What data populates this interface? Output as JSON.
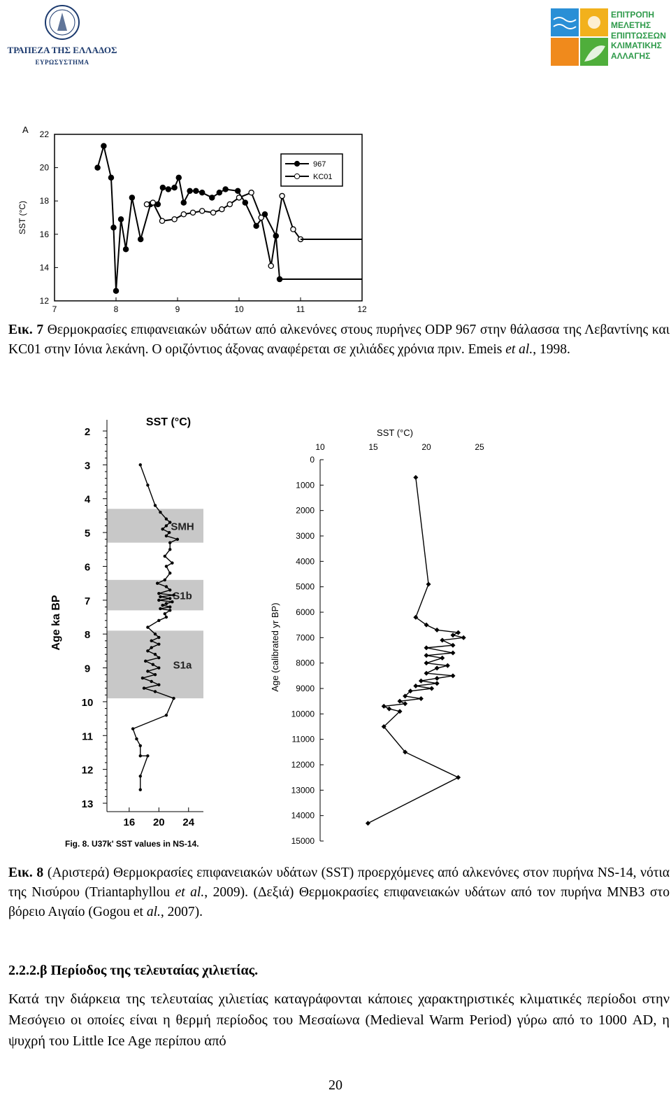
{
  "header": {
    "left_logo_text": "ΤΡΑΠΕΖΑ ΤΗΣ ΕΛΛΑΔΟΣ",
    "left_logo_sub": "ΕΥΡΩΣΥΣΤΗΜΑ",
    "right_logo_lines": [
      "ΕΠΙΤΡΟΠΗ",
      "ΜΕΛΕΤΗΣ",
      "ΕΠΙΠΤΩΣΕΩΝ",
      "ΚΛΙΜΑΤΙΚΗΣ",
      "ΑΛΛΑΓΗΣ"
    ]
  },
  "chart_data": [
    {
      "type": "line",
      "panel_label": "A",
      "ylabel": "SST (°C)",
      "xlim": [
        7,
        12
      ],
      "ylim": [
        12,
        22
      ],
      "xticks": [
        "7",
        "8",
        "9",
        "10",
        "11",
        "12"
      ],
      "yticks": [
        "12",
        "14",
        "16",
        "18",
        "20",
        "22"
      ],
      "series": [
        {
          "name": "967",
          "marker": "filled-circle",
          "x": [
            7.7,
            7.8,
            7.92,
            7.96,
            8.0,
            8.08,
            8.16,
            8.26,
            8.4,
            8.56,
            8.68,
            8.76,
            8.85,
            8.95,
            9.02,
            9.1,
            9.2,
            9.3,
            9.4,
            9.56,
            9.68,
            9.78,
            9.98,
            10.1,
            10.28,
            10.42,
            10.6,
            10.66
          ],
          "y": [
            20.0,
            21.3,
            19.4,
            16.4,
            12.6,
            16.9,
            15.1,
            18.2,
            15.7,
            17.8,
            17.8,
            18.8,
            18.7,
            18.8,
            19.4,
            17.9,
            18.6,
            18.6,
            18.5,
            18.2,
            18.5,
            18.7,
            18.6,
            17.9,
            16.5,
            17.2,
            15.9,
            13.3
          ]
        },
        {
          "name": "KC01",
          "marker": "open-circle",
          "x": [
            8.5,
            8.6,
            8.75,
            8.95,
            9.1,
            9.25,
            9.4,
            9.58,
            9.72,
            9.85,
            10.0,
            10.2,
            10.36,
            10.52,
            10.7,
            10.88,
            11.0
          ],
          "y": [
            17.8,
            17.9,
            16.8,
            16.9,
            17.2,
            17.3,
            17.4,
            17.3,
            17.5,
            17.8,
            18.2,
            18.5,
            17.0,
            14.1,
            18.3,
            16.3,
            15.7
          ]
        }
      ]
    },
    {
      "type": "line",
      "xlabel": "SST (°C)",
      "ylabel": "Age ka BP",
      "xticks": [
        "16",
        "20",
        "24"
      ],
      "yticks": [
        "2",
        "3",
        "4",
        "5",
        "6",
        "7",
        "8",
        "9",
        "10",
        "11",
        "12",
        "13"
      ],
      "xlim": [
        13,
        26
      ],
      "ylim": [
        2,
        13
      ],
      "bands": [
        {
          "label": "SMH",
          "from": 4.3,
          "to": 5.3
        },
        {
          "label": "S1b",
          "from": 6.4,
          "to": 7.3
        },
        {
          "label": "S1a",
          "from": 7.9,
          "to": 9.9
        }
      ],
      "caption": "Fig. 8. U37k' SST values in NS-14.",
      "series": [
        {
          "x": [
            17.5,
            18.5,
            19.5,
            20.2,
            21.0,
            21.5,
            21.0,
            20.5,
            21.4,
            21.0,
            22.5,
            21.5,
            21.5,
            20.8,
            21.8,
            21.0,
            21.5,
            20.8,
            19.8,
            21.0,
            21.5,
            20.0,
            22.0,
            20.2,
            21.5,
            20.0,
            21.8,
            21.0,
            20.5,
            21.5,
            20.2,
            21.5,
            20.8,
            21.0,
            20.0,
            18.5,
            19.5,
            20.0,
            19.0,
            20.0,
            19.0,
            18.5,
            19.5,
            20.0,
            18.2,
            19.2,
            20.0,
            18.5,
            19.5,
            17.8,
            19.0,
            20.0,
            18.0,
            19.5,
            22.0,
            21.0,
            16.5,
            17.0,
            17.5,
            17.5,
            18.5,
            17.5,
            17.5
          ],
          "y": [
            3.0,
            3.6,
            4.2,
            4.4,
            4.6,
            4.7,
            4.8,
            4.9,
            5.0,
            5.1,
            5.2,
            5.3,
            5.5,
            5.7,
            5.9,
            6.0,
            6.2,
            6.4,
            6.5,
            6.6,
            6.7,
            6.8,
            6.85,
            6.9,
            6.95,
            7.0,
            7.05,
            7.1,
            7.15,
            7.2,
            7.25,
            7.3,
            7.4,
            7.5,
            7.6,
            7.8,
            8.0,
            8.1,
            8.2,
            8.3,
            8.4,
            8.5,
            8.6,
            8.7,
            8.8,
            8.9,
            9.0,
            9.1,
            9.2,
            9.3,
            9.4,
            9.5,
            9.6,
            9.7,
            9.9,
            10.4,
            10.8,
            11.1,
            11.3,
            11.6,
            11.6,
            12.2,
            12.6
          ]
        }
      ]
    },
    {
      "type": "line",
      "xlabel": "SST (°C)",
      "ylabel": "Age (calibrated yr BP)",
      "xticks": [
        "10",
        "15",
        "20",
        "25"
      ],
      "yticks": [
        "0",
        "1000",
        "2000",
        "3000",
        "4000",
        "5000",
        "6000",
        "7000",
        "8000",
        "9000",
        "10000",
        "11000",
        "12000",
        "13000",
        "14000",
        "15000"
      ],
      "xlim": [
        10,
        25
      ],
      "ylim": [
        0,
        15000
      ],
      "series": [
        {
          "x": [
            19.0,
            20.2,
            19.0,
            20.0,
            21.0,
            23.0,
            22.5,
            23.5,
            21.5,
            22.5,
            20.0,
            22.5,
            20.0,
            21.5,
            20.0,
            22.0,
            21.0,
            20.0,
            22.5,
            21.0,
            19.5,
            21.0,
            19.0,
            20.5,
            18.5,
            18.0,
            19.5,
            17.5,
            18.0,
            16.0,
            16.5,
            17.5,
            16.0,
            18.0,
            23.0,
            14.5
          ],
          "y": [
            700,
            4900,
            6200,
            6500,
            6700,
            6800,
            6900,
            7000,
            7100,
            7300,
            7400,
            7600,
            7700,
            7800,
            8000,
            8100,
            8200,
            8400,
            8500,
            8600,
            8700,
            8800,
            8900,
            9000,
            9100,
            9300,
            9400,
            9500,
            9600,
            9700,
            9800,
            9900,
            10500,
            11500,
            12500,
            14300
          ]
        }
      ]
    }
  ],
  "captions": {
    "fig7_label": "Εικ.",
    "fig7_num": "7",
    "fig7_a": "Θερμοκρασίες επιφανειακών υδάτων από αλκενόνες στους πυρήνες ODP 967 στην θάλασσα της Λεβαντίνης και KC01 στην Ιόνια λεκάνη. Ο οριζόντιος άξονας αναφέρεται σε χιλιάδες χρόνια πριν. Emeis ",
    "fig7_etal": "et al.",
    "fig7_b": ", 1998.",
    "fig8_label": "Εικ.",
    "fig8_num": "8",
    "fig8_a": "(Αριστερά) Θερμοκρασίες επιφανειακών υδάτων (SST) προερχόμενες από αλκενόνες στον πυρήνα NS-14, νότια της Νισύρου (Triantaphyllou ",
    "fig8_etal1": "et al.",
    "fig8_b": ", 2009). (Δεξιά) Θερμοκρασίες επιφανειακών υδάτων από τον πυρήνα MNB3 στο βόρειο Αιγαίο (Gogou et ",
    "fig8_etal2": "al.",
    "fig8_c": ", 2007)."
  },
  "section": {
    "heading": "2.2.2.β Περίοδος της τελευταίας χιλιετίας.",
    "body": "Κατά την διάρκεια της τελευταίας χιλιετίας καταγράφονται κάποιες χαρακτηριστικές κλιματικές περίοδοι στην Μεσόγειο οι οποίες είναι η θερμή περίοδος του Μεσαίωνα (Medieval Warm Period) γύρω από το 1000 AD, η ψυχρή του Little Ice Age περίπου από"
  },
  "page_number": "20"
}
